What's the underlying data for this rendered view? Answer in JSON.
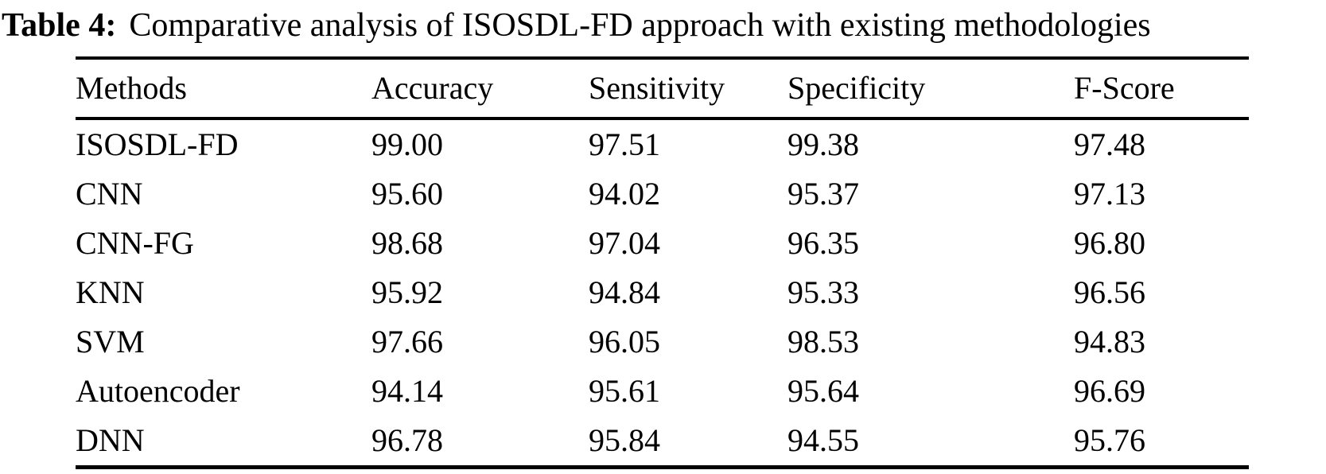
{
  "page": {
    "background_color": "#ffffff",
    "text_color": "#000000"
  },
  "caption": {
    "label": "Table 4:",
    "text": "Comparative analysis of ISOSDL-FD approach with existing methodologies"
  },
  "table": {
    "columns": [
      "Methods",
      "Accuracy",
      "Sensitivity",
      "Specificity",
      "F-Score"
    ],
    "rows": [
      [
        "ISOSDL-FD",
        "99.00",
        "97.51",
        "99.38",
        "97.48"
      ],
      [
        "CNN",
        "95.60",
        "94.02",
        "95.37",
        "97.13"
      ],
      [
        "CNN-FG",
        "98.68",
        "97.04",
        "96.35",
        "96.80"
      ],
      [
        "KNN",
        "95.92",
        "94.84",
        "95.33",
        "96.56"
      ],
      [
        "SVM",
        "97.66",
        "96.05",
        "98.53",
        "94.83"
      ],
      [
        "Autoencoder",
        "94.14",
        "95.61",
        "95.64",
        "96.69"
      ],
      [
        "DNN",
        "96.78",
        "95.84",
        "94.55",
        "95.76"
      ]
    ]
  }
}
